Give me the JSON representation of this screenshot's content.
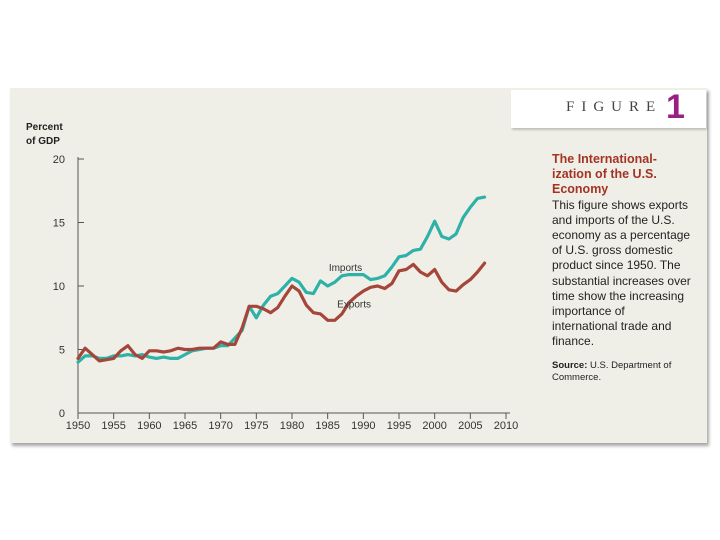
{
  "figure": {
    "word": "FIGURE",
    "number": "1"
  },
  "caption": {
    "title": "The International­ization of the U.S. Economy",
    "body": "This figure shows exports and imports of the U.S. economy as a percentage of U.S. gross domestic product since 1950. The substantial increases over time show the increasing importance of international trade and finance.",
    "source_label": "Source:",
    "source_text": "U.S. Department of Commerce."
  },
  "colors": {
    "imports": "#2eb1a8",
    "exports": "#a4463a",
    "panel": "#f0efe7"
  },
  "chart_data": {
    "type": "line",
    "title": "The Internationalization of the U.S. Economy",
    "ylabel_line1": "Percent",
    "ylabel_line2": "of GDP",
    "xlabel": "",
    "xlim": [
      1950,
      2010
    ],
    "ylim": [
      0,
      20
    ],
    "yticks": [
      0,
      5,
      10,
      15,
      20
    ],
    "xticks": [
      1950,
      1955,
      1960,
      1965,
      1970,
      1975,
      1980,
      1985,
      1990,
      1995,
      2000,
      2005,
      2010
    ],
    "x": [
      1950,
      1951,
      1952,
      1953,
      1954,
      1955,
      1956,
      1957,
      1958,
      1959,
      1960,
      1961,
      1962,
      1963,
      1964,
      1965,
      1966,
      1967,
      1968,
      1969,
      1970,
      1971,
      1972,
      1973,
      1974,
      1975,
      1976,
      1977,
      1978,
      1979,
      1980,
      1981,
      1982,
      1983,
      1984,
      1985,
      1986,
      1987,
      1988,
      1989,
      1990,
      1991,
      1992,
      1993,
      1994,
      1995,
      1996,
      1997,
      1998,
      1999,
      2000,
      2001,
      2002,
      2003,
      2004,
      2005,
      2006,
      2007
    ],
    "series": [
      {
        "name": "Imports",
        "values": [
          4.0,
          4.5,
          4.5,
          4.3,
          4.3,
          4.5,
          4.5,
          4.6,
          4.5,
          4.6,
          4.4,
          4.3,
          4.4,
          4.3,
          4.3,
          4.6,
          4.9,
          5.0,
          5.1,
          5.1,
          5.3,
          5.3,
          5.9,
          6.5,
          8.4,
          7.5,
          8.5,
          9.2,
          9.4,
          10.0,
          10.6,
          10.3,
          9.5,
          9.4,
          10.4,
          10.0,
          10.3,
          10.8,
          10.9,
          10.9,
          10.9,
          10.5,
          10.6,
          10.8,
          11.5,
          12.3,
          12.4,
          12.8,
          12.9,
          13.9,
          15.1,
          13.9,
          13.7,
          14.1,
          15.4,
          16.2,
          16.9,
          17.0
        ]
      },
      {
        "name": "Exports",
        "values": [
          4.3,
          5.1,
          4.6,
          4.1,
          4.2,
          4.3,
          4.9,
          5.3,
          4.6,
          4.3,
          4.9,
          4.9,
          4.8,
          4.9,
          5.1,
          5.0,
          5.0,
          5.1,
          5.1,
          5.1,
          5.6,
          5.4,
          5.4,
          6.7,
          8.4,
          8.4,
          8.2,
          7.9,
          8.3,
          9.2,
          10.0,
          9.6,
          8.5,
          7.9,
          7.8,
          7.3,
          7.3,
          7.8,
          8.7,
          9.2,
          9.6,
          9.9,
          10.0,
          9.8,
          10.2,
          11.2,
          11.3,
          11.7,
          11.1,
          10.8,
          11.3,
          10.3,
          9.7,
          9.6,
          10.1,
          10.5,
          11.1,
          11.8
        ]
      }
    ],
    "annotations": [
      "Imports",
      "Exports"
    ]
  }
}
